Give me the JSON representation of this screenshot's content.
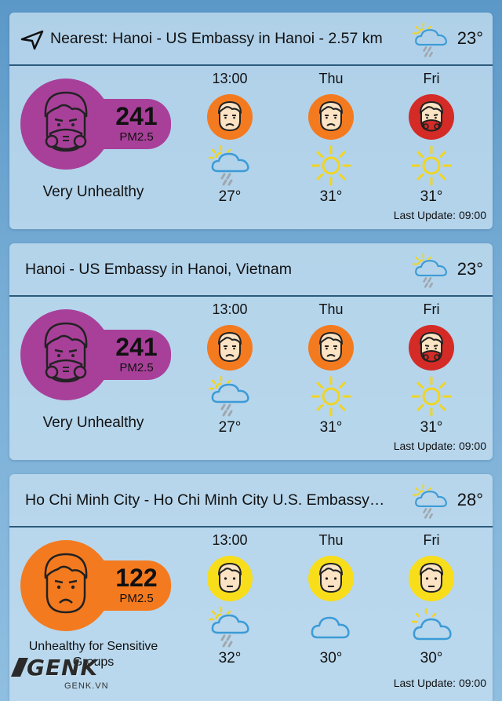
{
  "colors": {
    "very_unhealthy": "#a8409a",
    "unhealthy": "#d42b27",
    "unhealthy_sensitive": "#f47a1f",
    "moderate": "#f8dd1a",
    "sun": "#f1d520",
    "cloud": "#3c9bd6",
    "rain": "#a0a6ad"
  },
  "cards": [
    {
      "title": "Nearest: Hanoi - US Embassy in Hanoi - 2.57 km",
      "header_icon": "navigation-arrow-icon",
      "header_weather_icon": "sun-cloud-rain-icon",
      "header_temp": "23°",
      "aqi": {
        "value": "241",
        "unit": "PM2.5",
        "status": "Very Unhealthy",
        "level": "very_unhealthy",
        "face_icon": "mask-face-icon"
      },
      "forecast": [
        {
          "label": "13:00",
          "face_level": "unhealthy_sensitive",
          "face_icon": "sad-face-icon",
          "weather_icon": "sun-cloud-rain-icon",
          "temp": "27°"
        },
        {
          "label": "Thu",
          "face_level": "unhealthy_sensitive",
          "face_icon": "sad-face-icon",
          "weather_icon": "sun-icon",
          "temp": "31°"
        },
        {
          "label": "Fri",
          "face_level": "unhealthy",
          "face_icon": "mask-face-icon",
          "weather_icon": "sun-icon",
          "temp": "31°"
        }
      ],
      "last_update": "Last Update: 09:00"
    },
    {
      "title": "Hanoi - US Embassy in Hanoi, Vietnam",
      "header_weather_icon": "sun-cloud-rain-icon",
      "header_temp": "23°",
      "aqi": {
        "value": "241",
        "unit": "PM2.5",
        "status": "Very Unhealthy",
        "level": "very_unhealthy",
        "face_icon": "mask-face-icon"
      },
      "forecast": [
        {
          "label": "13:00",
          "face_level": "unhealthy_sensitive",
          "face_icon": "sad-face-icon",
          "weather_icon": "sun-cloud-rain-icon",
          "temp": "27°"
        },
        {
          "label": "Thu",
          "face_level": "unhealthy_sensitive",
          "face_icon": "sad-face-icon",
          "weather_icon": "sun-icon",
          "temp": "31°"
        },
        {
          "label": "Fri",
          "face_level": "unhealthy",
          "face_icon": "mask-face-icon",
          "weather_icon": "sun-icon",
          "temp": "31°"
        }
      ],
      "last_update": "Last Update: 09:00"
    },
    {
      "title": "Ho Chi Minh City - Ho Chi Minh City U.S. Embassy…",
      "header_weather_icon": "sun-cloud-rain-icon",
      "header_temp": "28°",
      "aqi": {
        "value": "122",
        "unit": "PM2.5",
        "status": "Unhealthy for Sensitive Groups",
        "level": "unhealthy_sensitive",
        "face_icon": "sad-face-icon"
      },
      "forecast": [
        {
          "label": "13:00",
          "face_level": "moderate",
          "face_icon": "neutral-face-icon",
          "weather_icon": "sun-cloud-rain-icon",
          "temp": "32°"
        },
        {
          "label": "Thu",
          "face_level": "moderate",
          "face_icon": "neutral-face-icon",
          "weather_icon": "cloud-icon",
          "temp": "30°"
        },
        {
          "label": "Fri",
          "face_level": "moderate",
          "face_icon": "neutral-face-icon",
          "weather_icon": "sun-cloud-icon",
          "temp": "30°"
        }
      ],
      "last_update": "Last Update: 09:00"
    }
  ],
  "watermark": {
    "logo": "GENK",
    "domain": "GENK.VN"
  }
}
